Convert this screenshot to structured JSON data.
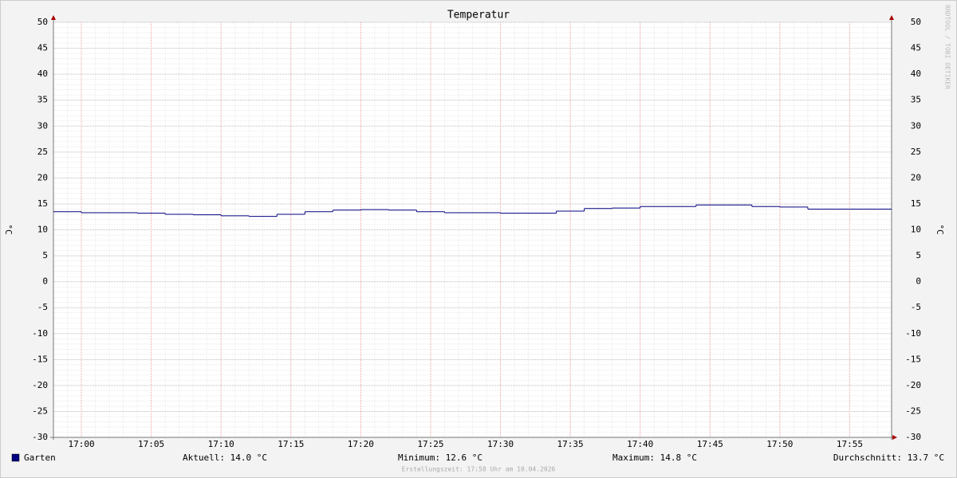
{
  "chart_data": {
    "type": "step",
    "title": "Temperatur",
    "y_label": "°C",
    "watermark": "RRDTOOL / TOBI OETIKER",
    "x": [
      "16:58",
      "17:00",
      "17:04",
      "17:06",
      "17:08",
      "17:10",
      "17:12",
      "17:14",
      "17:16",
      "17:18",
      "17:20",
      "17:22",
      "17:24",
      "17:26",
      "17:30",
      "17:34",
      "17:36",
      "17:38",
      "17:40",
      "17:44",
      "17:48",
      "17:50",
      "17:52"
    ],
    "series": [
      {
        "name": "Garten",
        "color": "#000080",
        "values": [
          13.5,
          13.3,
          13.2,
          13.0,
          12.9,
          12.7,
          12.6,
          13.0,
          13.5,
          13.8,
          13.9,
          13.8,
          13.5,
          13.3,
          13.2,
          13.6,
          14.1,
          14.2,
          14.5,
          14.8,
          14.5,
          14.4,
          14.0
        ]
      }
    ],
    "xlim": [
      "16:58",
      "17:58"
    ],
    "xticks": [
      "17:00",
      "17:05",
      "17:10",
      "17:15",
      "17:20",
      "17:25",
      "17:30",
      "17:35",
      "17:40",
      "17:45",
      "17:50",
      "17:55"
    ],
    "ylim": [
      -30,
      50
    ],
    "yticks": [
      50,
      45,
      40,
      35,
      30,
      25,
      20,
      15,
      10,
      5,
      0,
      -5,
      -10,
      -15,
      -20,
      -25,
      -30
    ],
    "grid": true,
    "stats": [
      "Aktuell: 14.0 °C",
      "Minimum: 12.6 °C",
      "Maximum: 14.8 °C",
      "Durchschnitt: 13.7 °C"
    ],
    "footer": "Erstellungszeit: 17:58 Uhr am 10.04.2026"
  }
}
